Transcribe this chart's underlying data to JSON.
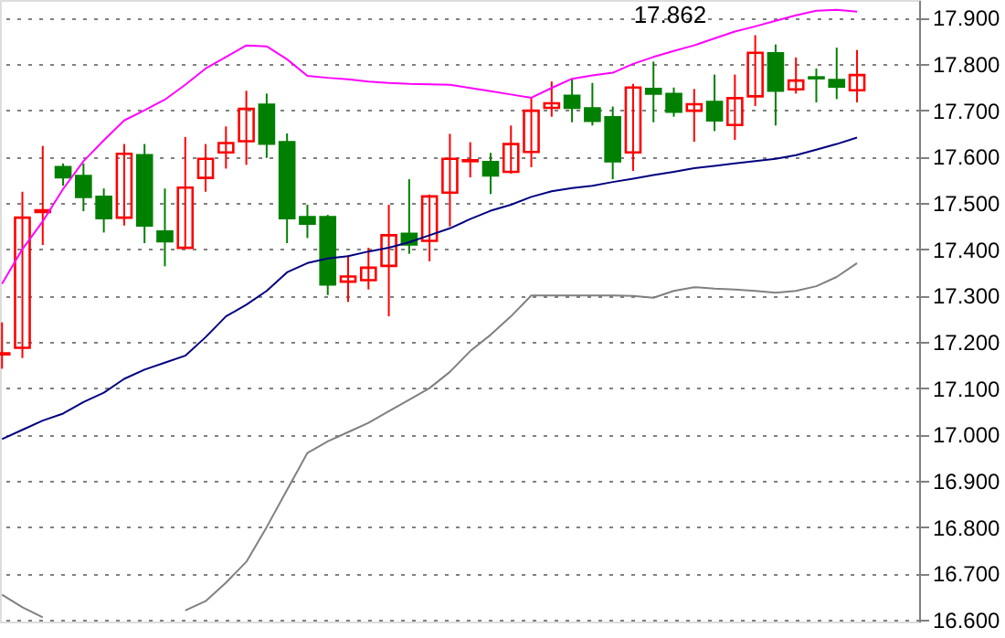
{
  "chart_data": {
    "type": "candlestick",
    "categories": [
      null,
      null,
      null,
      null,
      null,
      null,
      null,
      null,
      null,
      null,
      null,
      null,
      null,
      null,
      null,
      null,
      null,
      null,
      null,
      null,
      null,
      null,
      null,
      null,
      null,
      null,
      null,
      null,
      null,
      null,
      null,
      null,
      null,
      null,
      null,
      null,
      null,
      null,
      null,
      null,
      null,
      null,
      null
    ],
    "ohlc": [
      [
        17.173,
        17.242,
        17.142,
        17.175
      ],
      [
        17.187,
        17.524,
        17.165,
        17.468
      ],
      [
        17.48,
        17.623,
        17.409,
        17.484
      ],
      [
        17.577,
        17.585,
        17.537,
        17.555
      ],
      [
        17.558,
        17.585,
        17.482,
        17.513
      ],
      [
        17.513,
        17.531,
        17.436,
        17.467
      ],
      [
        17.468,
        17.627,
        17.451,
        17.606
      ],
      [
        17.603,
        17.627,
        17.413,
        17.451
      ],
      [
        17.438,
        17.531,
        17.363,
        17.417
      ],
      [
        17.403,
        17.642,
        17.403,
        17.533
      ],
      [
        17.554,
        17.627,
        17.524,
        17.595
      ],
      [
        17.609,
        17.665,
        17.574,
        17.629
      ],
      [
        17.633,
        17.742,
        17.582,
        17.703
      ],
      [
        17.712,
        17.736,
        17.597,
        17.628
      ],
      [
        17.631,
        17.65,
        17.413,
        17.467
      ],
      [
        17.469,
        17.496,
        17.424,
        17.455
      ],
      [
        17.469,
        17.474,
        17.301,
        17.324
      ],
      [
        17.33,
        17.387,
        17.286,
        17.341
      ],
      [
        17.333,
        17.403,
        17.313,
        17.36
      ],
      [
        17.364,
        17.496,
        17.255,
        17.43
      ],
      [
        17.433,
        17.551,
        17.39,
        17.41
      ],
      [
        17.418,
        17.518,
        17.374,
        17.514
      ],
      [
        17.522,
        17.649,
        17.449,
        17.595
      ],
      [
        17.59,
        17.631,
        17.555,
        17.592
      ],
      [
        17.588,
        17.608,
        17.519,
        17.559
      ],
      [
        17.567,
        17.667,
        17.563,
        17.627
      ],
      [
        17.61,
        17.728,
        17.577,
        17.699
      ],
      [
        17.705,
        17.762,
        17.686,
        17.715
      ],
      [
        17.731,
        17.768,
        17.674,
        17.705
      ],
      [
        17.704,
        17.759,
        17.667,
        17.677
      ],
      [
        17.685,
        17.708,
        17.551,
        17.59
      ],
      [
        17.609,
        17.757,
        17.569,
        17.749
      ],
      [
        17.746,
        17.805,
        17.674,
        17.736
      ],
      [
        17.735,
        17.749,
        17.686,
        17.697
      ],
      [
        17.699,
        17.746,
        17.632,
        17.713
      ],
      [
        17.718,
        17.777,
        17.655,
        17.678
      ],
      [
        17.668,
        17.777,
        17.636,
        17.726
      ],
      [
        17.73,
        17.862,
        17.709,
        17.824
      ],
      [
        17.823,
        17.842,
        17.667,
        17.742
      ],
      [
        17.745,
        17.814,
        17.736,
        17.764
      ],
      [
        17.771,
        17.79,
        17.717,
        17.769
      ],
      [
        17.765,
        17.835,
        17.724,
        17.751
      ],
      [
        17.743,
        17.83,
        17.717,
        17.776
      ]
    ],
    "colors": [
      "#ff0000",
      "#ff0000",
      "#ff0000",
      "#008000",
      "#008000",
      "#008000",
      "#ff0000",
      "#008000",
      "#008000",
      "#ff0000",
      "#ff0000",
      "#ff0000",
      "#ff0000",
      "#008000",
      "#008000",
      "#008000",
      "#008000",
      "#ff0000",
      "#ff0000",
      "#ff0000",
      "#008000",
      "#ff0000",
      "#ff0000",
      "#ff0000",
      "#008000",
      "#ff0000",
      "#ff0000",
      "#ff0000",
      "#008000",
      "#008000",
      "#008000",
      "#ff0000",
      "#008000",
      "#008000",
      "#ff0000",
      "#008000",
      "#ff0000",
      "#ff0000",
      "#008000",
      "#ff0000",
      "#008000",
      "#008000",
      "#ff0000"
    ],
    "series": [
      {
        "type": "line",
        "color": "#ff00ff",
        "values": [
          17.325,
          17.4,
          17.46,
          17.53,
          17.59,
          17.635,
          17.678,
          17.7,
          17.723,
          17.755,
          17.79,
          17.815,
          17.84,
          17.838,
          17.81,
          17.774,
          17.77,
          17.767,
          17.762,
          17.759,
          17.757,
          17.756,
          17.755,
          17.748,
          17.741,
          17.734,
          17.727,
          17.748,
          17.768,
          17.775,
          17.781,
          17.8,
          17.815,
          17.828,
          17.84,
          17.855,
          17.87,
          17.881,
          17.893,
          17.905,
          17.915,
          17.917,
          17.913
        ]
      },
      {
        "type": "line",
        "color": "#000080",
        "values": [
          16.99,
          17.01,
          17.03,
          17.045,
          17.07,
          17.09,
          17.12,
          17.14,
          17.155,
          17.17,
          17.21,
          17.255,
          17.28,
          17.31,
          17.35,
          17.37,
          17.38,
          17.385,
          17.395,
          17.403,
          17.415,
          17.43,
          17.445,
          17.465,
          17.483,
          17.496,
          17.513,
          17.525,
          17.532,
          17.537,
          17.545,
          17.552,
          17.56,
          17.567,
          17.575,
          17.58,
          17.585,
          17.59,
          17.595,
          17.603,
          17.615,
          17.627,
          17.641
        ]
      },
      {
        "type": "line",
        "color": "#808080",
        "values": [
          16.654,
          16.627,
          16.605,
          null,
          null,
          null,
          null,
          null,
          null,
          16.62,
          16.64,
          16.68,
          16.725,
          16.8,
          16.88,
          16.96,
          16.985,
          17.005,
          17.025,
          17.05,
          17.075,
          17.1,
          17.135,
          17.18,
          17.215,
          17.255,
          17.3,
          17.3,
          17.3,
          17.3,
          17.3,
          17.299,
          17.295,
          17.31,
          17.318,
          17.315,
          17.313,
          17.31,
          17.306,
          17.31,
          17.32,
          17.34,
          17.37
        ]
      }
    ],
    "ylim": [
      16.596,
      17.938
    ],
    "yticks": [
      {
        "value": 16.6,
        "label": "16.600"
      },
      {
        "value": 16.7,
        "label": "16.700"
      },
      {
        "value": 16.8,
        "label": "16.800"
      },
      {
        "value": 16.9,
        "label": "16.900"
      },
      {
        "value": 17.0,
        "label": "17.000"
      },
      {
        "value": 17.1,
        "label": "17.100"
      },
      {
        "value": 17.2,
        "label": "17.200"
      },
      {
        "value": 17.3,
        "label": "17.300"
      },
      {
        "value": 17.4,
        "label": "17.400"
      },
      {
        "value": 17.5,
        "label": "17.500"
      },
      {
        "value": 17.6,
        "label": "17.600"
      },
      {
        "value": 17.7,
        "label": "17.700"
      },
      {
        "value": 17.8,
        "label": "17.800"
      },
      {
        "value": 17.9,
        "label": "17.900"
      }
    ],
    "grid": "y",
    "tick_labels": "y",
    "annotations": [
      "17.862"
    ]
  }
}
